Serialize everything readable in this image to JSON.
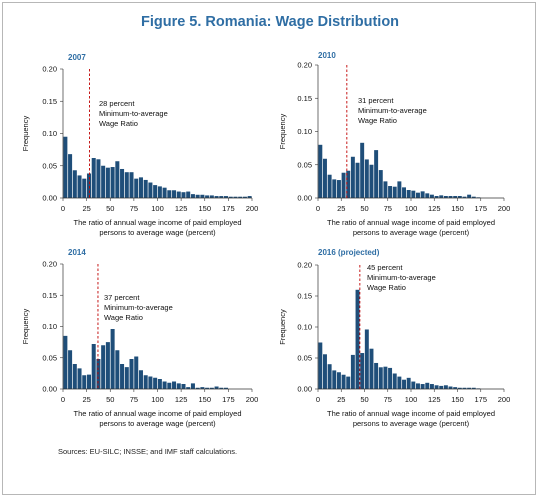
{
  "figure_title": "Figure 5. Romania: Wage Distribution",
  "source_note": "Sources: EU-SILC; INSSE; and IMF staff calculations.",
  "colors": {
    "bar": "#1f4e79",
    "ref_line": "#c00000",
    "title": "#2f6ea4"
  },
  "chart_data": [
    {
      "type": "bar",
      "title": "2007",
      "ylabel": "Frequency",
      "xlabel_lines": [
        "The ratio of annual wage income of paid employed",
        "persons to average wage (percent)"
      ],
      "xlim": [
        0,
        200
      ],
      "ylim": [
        0,
        0.2
      ],
      "xticks": [
        "0",
        "25",
        "50",
        "75",
        "100",
        "125",
        "150",
        "175",
        "200"
      ],
      "yticks": [
        "0.00",
        "0.05",
        "0.10",
        "0.15",
        "0.20"
      ],
      "bin_width": 5,
      "bin_starts": [
        0,
        5,
        10,
        15,
        20,
        25,
        30,
        35,
        40,
        45,
        50,
        55,
        60,
        65,
        70,
        75,
        80,
        85,
        90,
        95,
        100,
        105,
        110,
        115,
        120,
        125,
        130,
        135,
        140,
        145,
        150,
        155,
        160,
        165,
        170,
        175,
        180,
        185,
        190,
        195
      ],
      "values": [
        0.095,
        0.068,
        0.043,
        0.035,
        0.03,
        0.038,
        0.062,
        0.06,
        0.05,
        0.047,
        0.048,
        0.057,
        0.045,
        0.04,
        0.04,
        0.03,
        0.032,
        0.028,
        0.024,
        0.02,
        0.018,
        0.016,
        0.012,
        0.012,
        0.01,
        0.009,
        0.01,
        0.006,
        0.005,
        0.005,
        0.004,
        0.004,
        0.003,
        0.003,
        0.003,
        0.002,
        0.002,
        0.002,
        0.002,
        0.003
      ],
      "ref_line_x": 28,
      "annotation": [
        "28 percent",
        "Minimum-to-average",
        "Wage Ratio"
      ]
    },
    {
      "type": "bar",
      "title": "2010",
      "ylabel": "Frequency",
      "xlabel_lines": [
        "The ratio of annual wage income of paid employed",
        "persons to average wage (percent)"
      ],
      "xlim": [
        0,
        200
      ],
      "ylim": [
        0,
        0.2
      ],
      "xticks": [
        "0",
        "25",
        "50",
        "75",
        "100",
        "125",
        "150",
        "175",
        "200"
      ],
      "yticks": [
        "0.00",
        "0.05",
        "0.10",
        "0.15",
        "0.20"
      ],
      "bin_width": 5,
      "bin_starts": [
        0,
        5,
        10,
        15,
        20,
        25,
        30,
        35,
        40,
        45,
        50,
        55,
        60,
        65,
        70,
        75,
        80,
        85,
        90,
        95,
        100,
        105,
        110,
        115,
        120,
        125,
        130,
        135,
        140,
        145,
        150,
        155,
        160,
        165,
        170,
        175,
        180,
        185,
        190,
        195
      ],
      "values": [
        0.08,
        0.059,
        0.035,
        0.028,
        0.027,
        0.038,
        0.041,
        0.062,
        0.053,
        0.083,
        0.058,
        0.05,
        0.072,
        0.042,
        0.025,
        0.018,
        0.017,
        0.025,
        0.016,
        0.012,
        0.011,
        0.008,
        0.01,
        0.007,
        0.005,
        0.003,
        0.004,
        0.003,
        0.003,
        0.003,
        0.003,
        0.002,
        0.005,
        0.002,
        0.001,
        0.0,
        0.0,
        0.0,
        0.0,
        0.0
      ],
      "ref_line_x": 31,
      "annotation": [
        "31 percent",
        "Minimum-to-average",
        "Wage Ratio"
      ]
    },
    {
      "type": "bar",
      "title": "2014",
      "ylabel": "Frequency",
      "xlabel_lines": [
        "The ratio of annual wage income of paid employed",
        "persons to average wage (percent)"
      ],
      "xlim": [
        0,
        200
      ],
      "ylim": [
        0,
        0.2
      ],
      "xticks": [
        "0",
        "25",
        "50",
        "75",
        "100",
        "125",
        "150",
        "175",
        "200"
      ],
      "yticks": [
        "0.00",
        "0.05",
        "0.10",
        "0.15",
        "0.20"
      ],
      "bin_width": 5,
      "bin_starts": [
        0,
        5,
        10,
        15,
        20,
        25,
        30,
        35,
        40,
        45,
        50,
        55,
        60,
        65,
        70,
        75,
        80,
        85,
        90,
        95,
        100,
        105,
        110,
        115,
        120,
        125,
        130,
        135,
        140,
        145,
        150,
        155,
        160,
        165,
        170,
        175,
        180,
        185,
        190,
        195
      ],
      "values": [
        0.085,
        0.062,
        0.04,
        0.033,
        0.022,
        0.023,
        0.072,
        0.048,
        0.07,
        0.075,
        0.096,
        0.062,
        0.04,
        0.035,
        0.048,
        0.052,
        0.03,
        0.022,
        0.02,
        0.018,
        0.016,
        0.012,
        0.01,
        0.012,
        0.009,
        0.008,
        0.003,
        0.009,
        0.002,
        0.003,
        0.002,
        0.002,
        0.004,
        0.002,
        0.002,
        0.0,
        0.0,
        0.0,
        0.0,
        0.0
      ],
      "ref_line_x": 37,
      "annotation": [
        "37 percent",
        "Minimum-to-average",
        "Wage Ratio"
      ]
    },
    {
      "type": "bar",
      "title": "2016 (projected)",
      "ylabel": "Frequency",
      "xlabel_lines": [
        "The ratio of annual wage income of paid employed",
        "persons to average wage (percent)"
      ],
      "xlim": [
        0,
        200
      ],
      "ylim": [
        0,
        0.2
      ],
      "xticks": [
        "0",
        "25",
        "50",
        "75",
        "100",
        "125",
        "150",
        "175",
        "200"
      ],
      "yticks": [
        "0.00",
        "0.05",
        "0.10",
        "0.15",
        "0.20"
      ],
      "bin_width": 5,
      "bin_starts": [
        0,
        5,
        10,
        15,
        20,
        25,
        30,
        35,
        40,
        45,
        50,
        55,
        60,
        65,
        70,
        75,
        80,
        85,
        90,
        95,
        100,
        105,
        110,
        115,
        120,
        125,
        130,
        135,
        140,
        145,
        150,
        155,
        160,
        165,
        170,
        175,
        180,
        185,
        190,
        195
      ],
      "values": [
        0.075,
        0.056,
        0.04,
        0.03,
        0.027,
        0.023,
        0.02,
        0.055,
        0.16,
        0.058,
        0.096,
        0.065,
        0.042,
        0.035,
        0.036,
        0.034,
        0.025,
        0.02,
        0.015,
        0.018,
        0.012,
        0.009,
        0.008,
        0.01,
        0.008,
        0.006,
        0.005,
        0.006,
        0.004,
        0.003,
        0.002,
        0.002,
        0.002,
        0.002,
        0.001,
        0.0,
        0.0,
        0.0,
        0.0,
        0.0
      ],
      "ref_line_x": 45,
      "annotation": [
        "45 percent",
        "Minimum-to-average",
        "Wage Ratio"
      ]
    }
  ]
}
